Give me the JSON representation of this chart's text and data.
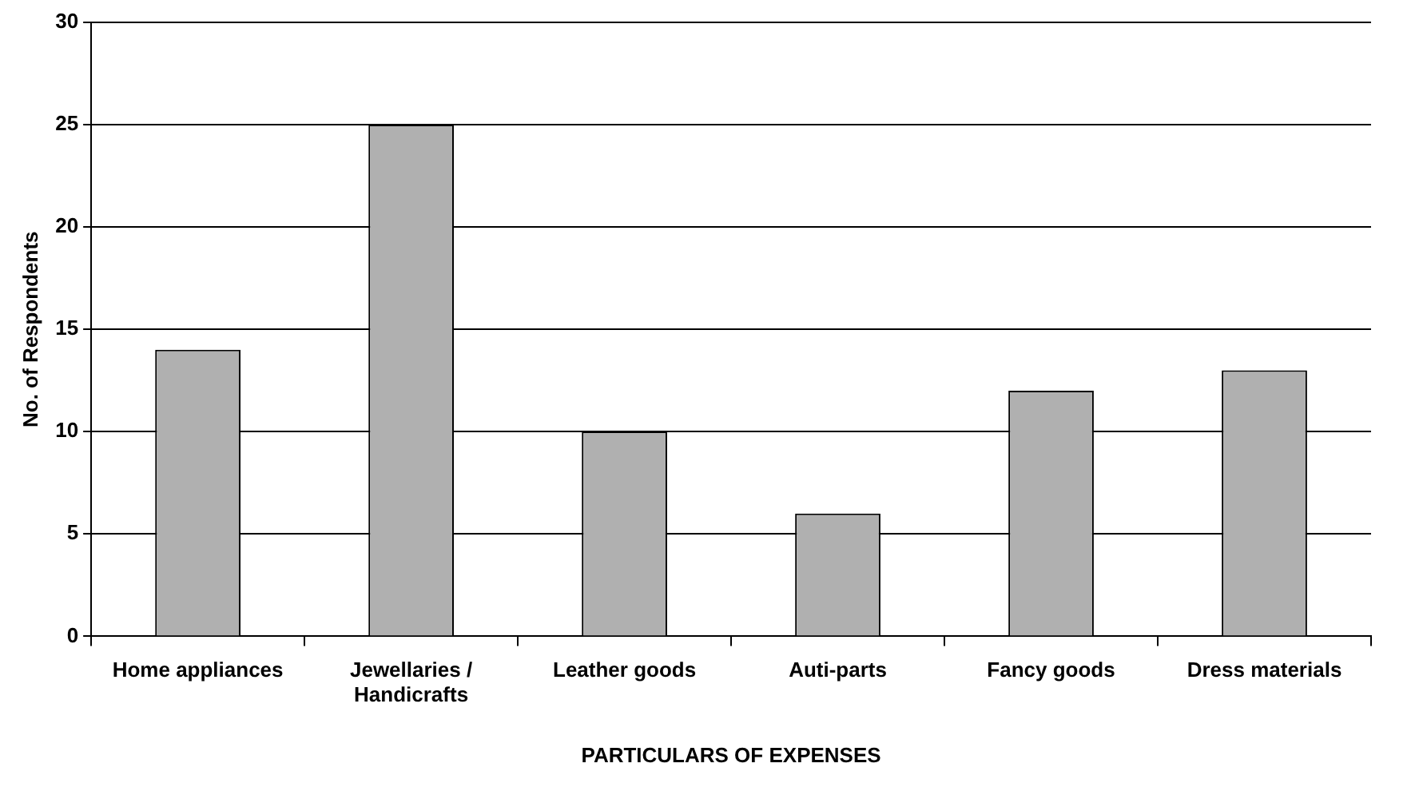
{
  "chart_data": {
    "type": "bar",
    "xlabel": "PARTICULARS OF EXPENSES",
    "ylabel": "No. of Respondents",
    "categories": [
      "Home appliances",
      "Jewellaries / Handicrafts",
      "Leather goods",
      "Auti-parts",
      "Fancy goods",
      "Dress materials"
    ],
    "values": [
      14,
      25,
      10,
      6,
      12,
      13
    ],
    "color": "#b0b0b0",
    "ylim": [
      0,
      30
    ],
    "yticks": [
      0,
      5,
      10,
      15,
      20,
      25,
      30
    ],
    "grid": "y",
    "legend": false
  }
}
